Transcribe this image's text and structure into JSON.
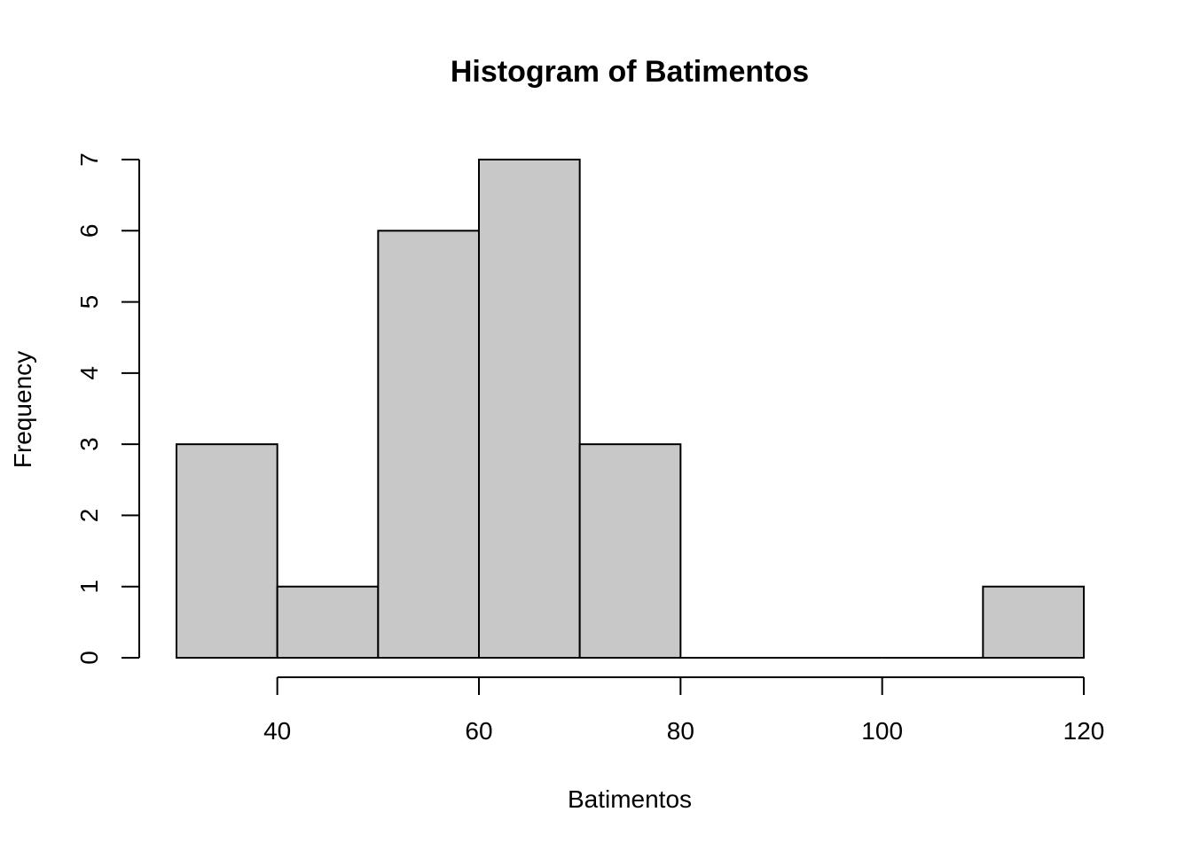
{
  "chart_data": {
    "type": "bar",
    "subtype": "histogram",
    "title": "Histogram of Batimentos",
    "xlabel": "Batimentos",
    "ylabel": "Frequency",
    "bins": [
      {
        "from": 30,
        "to": 40,
        "count": 3
      },
      {
        "from": 40,
        "to": 50,
        "count": 1
      },
      {
        "from": 50,
        "to": 60,
        "count": 6
      },
      {
        "from": 60,
        "to": 70,
        "count": 7
      },
      {
        "from": 70,
        "to": 80,
        "count": 3
      },
      {
        "from": 80,
        "to": 90,
        "count": 0
      },
      {
        "from": 90,
        "to": 100,
        "count": 0
      },
      {
        "from": 100,
        "to": 110,
        "count": 0
      },
      {
        "from": 110,
        "to": 120,
        "count": 1
      }
    ],
    "x_ticks": [
      40,
      60,
      80,
      100,
      120
    ],
    "y_ticks": [
      0,
      1,
      2,
      3,
      4,
      5,
      6,
      7
    ],
    "xlim": [
      30,
      120
    ],
    "ylim": [
      0,
      7
    ],
    "grid": false,
    "legend": "none",
    "colors": {
      "bar_fill": "#c8c8c8",
      "bar_stroke": "#000000"
    }
  }
}
